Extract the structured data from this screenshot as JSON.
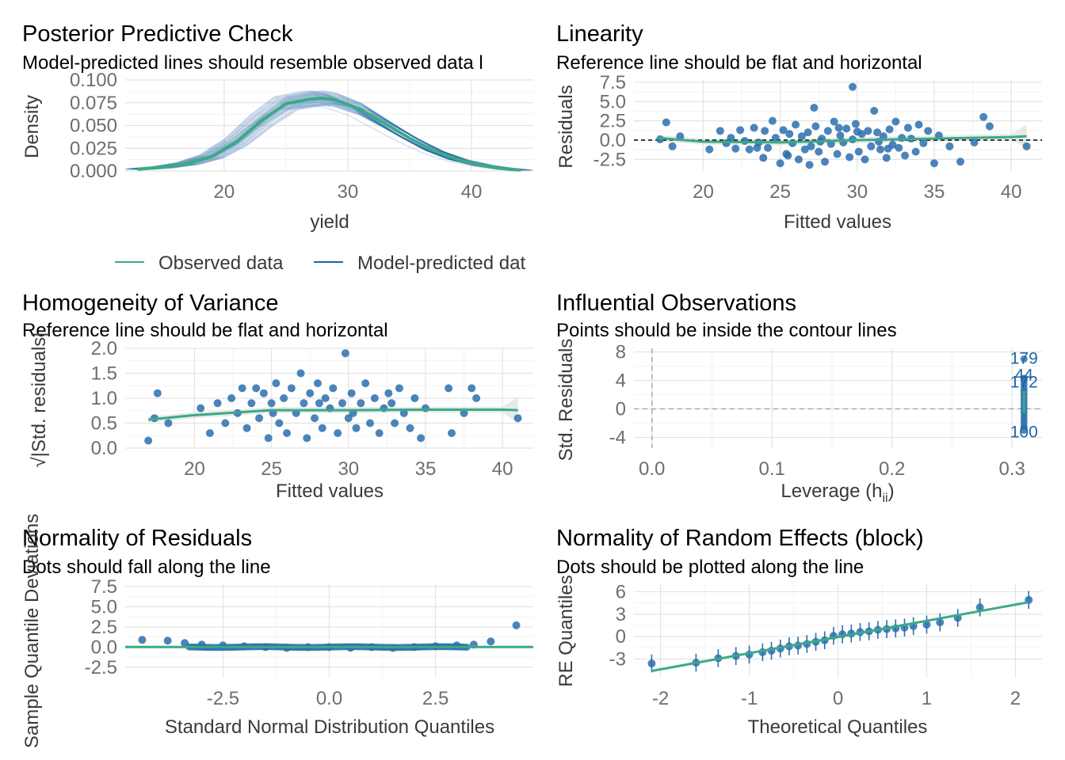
{
  "colors": {
    "observed": "#3aaa85",
    "predicted": "#1f65a6",
    "points": "#2c6fae",
    "ref": "#3aaa85",
    "band": "#dadada"
  },
  "chart_data": [
    {
      "id": "ppc",
      "type": "line",
      "title": "Posterior Predictive Check",
      "subtitle": "Model-predicted lines should resemble observed data l",
      "xlabel": "yield",
      "ylabel": "Density",
      "xlim": [
        12,
        45
      ],
      "ylim": [
        0,
        0.1
      ],
      "x_ticks": [
        20,
        30,
        40
      ],
      "x_tick_labels": [
        "20",
        "30",
        "40"
      ],
      "y_ticks": [
        0,
        0.025,
        0.05,
        0.075,
        0.1
      ],
      "y_tick_labels": [
        "0.000",
        "0.025",
        "0.050",
        "0.075",
        "0.100"
      ],
      "legend": [
        {
          "label": "Observed data",
          "color": "#3aaa85"
        },
        {
          "label": "Model-predicted dat",
          "color": "#1f65a6"
        }
      ],
      "series": [
        {
          "name": "Observed data",
          "x": [
            13,
            15,
            17,
            19,
            21,
            23,
            25,
            27,
            28,
            29,
            31,
            33,
            35,
            37,
            39,
            41,
            43,
            44
          ],
          "y": [
            0.002,
            0.004,
            0.008,
            0.016,
            0.032,
            0.055,
            0.074,
            0.079,
            0.08,
            0.078,
            0.068,
            0.052,
            0.036,
            0.022,
            0.012,
            0.006,
            0.002,
            0.001
          ]
        }
      ]
    },
    {
      "id": "linearity",
      "type": "scatter",
      "title": "Linearity",
      "subtitle": "Reference line should be flat and horizontal",
      "xlabel": "Fitted values",
      "ylabel": "Residuals",
      "xlim": [
        15.5,
        42
      ],
      "ylim": [
        -4,
        7.8
      ],
      "x_ticks": [
        20,
        25,
        30,
        35,
        40
      ],
      "x_tick_labels": [
        "20",
        "25",
        "30",
        "35",
        "40"
      ],
      "y_ticks": [
        -2.5,
        0,
        2.5,
        5,
        7.5
      ],
      "y_tick_labels": [
        "-2.5",
        "0.0",
        "2.5",
        "5.0",
        "7.5"
      ],
      "points": [
        [
          17.2,
          0.1
        ],
        [
          17.6,
          2.3
        ],
        [
          18,
          -0.8
        ],
        [
          18.5,
          0.5
        ],
        [
          20.4,
          -1.2
        ],
        [
          21.1,
          1.2
        ],
        [
          21.5,
          -0.4
        ],
        [
          21.8,
          0.3
        ],
        [
          22.1,
          -1.1
        ],
        [
          22.4,
          1.3
        ],
        [
          22.7,
          -0.1
        ],
        [
          23.0,
          -1.2
        ],
        [
          23.3,
          1.6
        ],
        [
          23.6,
          -0.3
        ],
        [
          23.9,
          -2.3
        ],
        [
          24.0,
          1.2
        ],
        [
          24.2,
          -1.0
        ],
        [
          24.5,
          2.5
        ],
        [
          24.7,
          0.3
        ],
        [
          25.0,
          -3.0
        ],
        [
          25.2,
          1.3
        ],
        [
          25.4,
          -1.8
        ],
        [
          25.6,
          0.8
        ],
        [
          25.8,
          -0.4
        ],
        [
          26.0,
          2.0
        ],
        [
          26.2,
          -2.5
        ],
        [
          26.4,
          0.5
        ],
        [
          26.6,
          -1.2
        ],
        [
          26.8,
          1.0
        ],
        [
          27.0,
          -0.8
        ],
        [
          27.2,
          4.2
        ],
        [
          27.3,
          1.8
        ],
        [
          27.5,
          -1.5
        ],
        [
          27.7,
          0.2
        ],
        [
          27.9,
          -2.8
        ],
        [
          28.1,
          1.2
        ],
        [
          28.3,
          -0.5
        ],
        [
          28.5,
          2.4
        ],
        [
          28.7,
          -1.8
        ],
        [
          28.9,
          0.6
        ],
        [
          29.1,
          -0.3
        ],
        [
          29.3,
          1.5
        ],
        [
          29.5,
          -2.2
        ],
        [
          29.7,
          0.1
        ],
        [
          29.9,
          2.1
        ],
        [
          30.1,
          -1.5
        ],
        [
          30.3,
          0.8
        ],
        [
          30.5,
          -2.5
        ],
        [
          30.7,
          1.2
        ],
        [
          30.9,
          -0.8
        ],
        [
          31.1,
          3.8
        ],
        [
          31.3,
          1.0
        ],
        [
          31.5,
          -1.2
        ],
        [
          31.7,
          0.5
        ],
        [
          31.9,
          -2.3
        ],
        [
          32.1,
          1.4
        ],
        [
          32.3,
          -0.6
        ],
        [
          32.5,
          2.4
        ],
        [
          32.7,
          -1.0
        ],
        [
          32.9,
          0.3
        ],
        [
          33.1,
          -2.0
        ],
        [
          33.3,
          1.6
        ],
        [
          33.5,
          0.2
        ],
        [
          33.8,
          -1.5
        ],
        [
          34.0,
          2.0
        ],
        [
          34.3,
          -0.4
        ],
        [
          34.6,
          1.2
        ],
        [
          35.0,
          -3.0
        ],
        [
          35.3,
          0.6
        ],
        [
          36.0,
          -0.8
        ],
        [
          36.7,
          -2.8
        ],
        [
          37.6,
          -0.3
        ],
        [
          38.2,
          3.0
        ],
        [
          38.6,
          1.8
        ],
        [
          41,
          -0.8
        ],
        [
          29.7,
          6.9
        ],
        [
          23.5,
          -1.0
        ],
        [
          25.5,
          -2.0
        ],
        [
          27.6,
          -0.2
        ],
        [
          30.0,
          1.1
        ],
        [
          32.0,
          -1.1
        ],
        [
          26.9,
          -3.2
        ],
        [
          28.8,
          1.6
        ],
        [
          31.4,
          -0.2
        ]
      ],
      "ref_line": {
        "x": [
          17,
          20,
          25,
          30,
          35,
          40,
          41
        ],
        "y": [
          0.3,
          -0.2,
          -0.3,
          0.0,
          0.2,
          0.4,
          0.5
        ]
      },
      "zero_line": true
    },
    {
      "id": "homogeneity",
      "type": "scatter",
      "title": "Homogeneity of Variance",
      "subtitle": "Reference line should be flat and horizontal",
      "xlabel": "Fitted values",
      "ylabel": "√|Std. residuals|",
      "xlim": [
        15.5,
        42
      ],
      "ylim": [
        0,
        2
      ],
      "x_ticks": [
        20,
        25,
        30,
        35,
        40
      ],
      "x_tick_labels": [
        "20",
        "25",
        "30",
        "35",
        "40"
      ],
      "y_ticks": [
        0,
        0.5,
        1,
        1.5,
        2
      ],
      "y_tick_labels": [
        "0.0",
        "0.5",
        "1.0",
        "1.5",
        "2.0"
      ],
      "points": [
        [
          17,
          0.15
        ],
        [
          17.4,
          0.6
        ],
        [
          17.6,
          1.1
        ],
        [
          18.3,
          0.5
        ],
        [
          20.4,
          0.8
        ],
        [
          21,
          0.3
        ],
        [
          21.5,
          0.9
        ],
        [
          22,
          0.5
        ],
        [
          22.4,
          1.0
        ],
        [
          22.8,
          0.7
        ],
        [
          23.1,
          1.2
        ],
        [
          23.4,
          0.4
        ],
        [
          23.7,
          0.9
        ],
        [
          24,
          1.2
        ],
        [
          24.2,
          0.6
        ],
        [
          24.5,
          1.1
        ],
        [
          24.8,
          0.2
        ],
        [
          25,
          0.9
        ],
        [
          25.3,
          1.3
        ],
        [
          25.5,
          0.5
        ],
        [
          25.8,
          1.0
        ],
        [
          26,
          0.3
        ],
        [
          26.3,
          1.2
        ],
        [
          26.6,
          0.7
        ],
        [
          26.9,
          1.5
        ],
        [
          27.1,
          0.9
        ],
        [
          27.3,
          0.2
        ],
        [
          27.5,
          1.1
        ],
        [
          27.8,
          0.6
        ],
        [
          28,
          1.3
        ],
        [
          28.3,
          0.4
        ],
        [
          28.5,
          1.0
        ],
        [
          28.8,
          0.8
        ],
        [
          29,
          1.2
        ],
        [
          29.3,
          0.3
        ],
        [
          29.6,
          0.9
        ],
        [
          29.8,
          1.9
        ],
        [
          30,
          0.6
        ],
        [
          30.2,
          1.1
        ],
        [
          30.5,
          0.4
        ],
        [
          30.8,
          0.9
        ],
        [
          31.1,
          1.3
        ],
        [
          31.4,
          0.5
        ],
        [
          31.7,
          1.0
        ],
        [
          32,
          0.3
        ],
        [
          32.3,
          0.8
        ],
        [
          32.6,
          1.1
        ],
        [
          33,
          0.5
        ],
        [
          33.3,
          1.2
        ],
        [
          33.6,
          0.7
        ],
        [
          34,
          0.4
        ],
        [
          34.3,
          1.0
        ],
        [
          34.7,
          0.2
        ],
        [
          35,
          0.8
        ],
        [
          36.5,
          1.2
        ],
        [
          36.7,
          0.3
        ],
        [
          37.5,
          0.7
        ],
        [
          38,
          1.2
        ],
        [
          38.3,
          1.0
        ],
        [
          41,
          0.6
        ],
        [
          25.1,
          0.7
        ],
        [
          28.1,
          0.9
        ],
        [
          30.3,
          0.7
        ],
        [
          32.8,
          0.9
        ]
      ],
      "ref_line": {
        "x": [
          17,
          20,
          25,
          30,
          35,
          40,
          41
        ],
        "y": [
          0.57,
          0.66,
          0.76,
          0.76,
          0.77,
          0.77,
          0.76
        ]
      }
    },
    {
      "id": "influence",
      "type": "scatter",
      "title": "Influential Observations",
      "subtitle": "Points should be inside the contour lines",
      "xlabel": "Leverage (h",
      "xlabel_sub": "ii",
      "xlabel_end": ")",
      "ylabel": "Std. Residuals",
      "xlim": [
        -0.015,
        0.325
      ],
      "ylim": [
        -5.5,
        8.5
      ],
      "x_ticks": [
        0,
        0.1,
        0.2,
        0.3
      ],
      "x_tick_labels": [
        "0.0",
        "0.1",
        "0.2",
        "0.3"
      ],
      "y_ticks": [
        -4,
        0,
        4,
        8
      ],
      "y_tick_labels": [
        "-4",
        "0",
        "4",
        "8"
      ],
      "point_labels": [
        {
          "label": "179",
          "x": 0.31,
          "y": 7.2
        },
        {
          "label": "44",
          "x": 0.31,
          "y": 4.9
        },
        {
          "label": "172",
          "x": 0.31,
          "y": 3.9
        },
        {
          "label": "100",
          "x": 0.31,
          "y": -3.1
        }
      ],
      "point_x": 0.31,
      "point_ys": [
        -3.0,
        -2.5,
        -2.0,
        -1.5,
        -1.0,
        -0.5,
        0,
        0.5,
        1.0,
        1.5,
        2.0,
        2.5,
        3.0,
        3.5,
        4.0,
        4.3,
        7.0
      ]
    },
    {
      "id": "normres",
      "type": "scatter",
      "title": "Normality of Residuals",
      "subtitle": "Dots should fall along the line",
      "xlabel": "Standard Normal Distribution Quantiles",
      "ylabel": "Sample Quantile Deviations",
      "xlim": [
        -4.8,
        4.8
      ],
      "ylim": [
        -3.8,
        7.8
      ],
      "x_ticks": [
        -2.5,
        0,
        2.5
      ],
      "x_tick_labels": [
        "-2.5",
        "0.0",
        "2.5"
      ],
      "y_ticks": [
        -2.5,
        0,
        2.5,
        5,
        7.5
      ],
      "y_tick_labels": [
        "-2.5",
        "0.0",
        "2.5",
        "5.0",
        "7.5"
      ],
      "points": [
        [
          -4.4,
          0.9
        ],
        [
          -3.8,
          0.8
        ],
        [
          -3.4,
          0.5
        ],
        [
          -3.0,
          0.3
        ],
        [
          -2.5,
          0.2
        ],
        [
          -2.0,
          0.1
        ],
        [
          -1.5,
          0.0
        ],
        [
          -1.0,
          -0.1
        ],
        [
          -0.5,
          0.0
        ],
        [
          0,
          0.0
        ],
        [
          0.5,
          -0.1
        ],
        [
          1.0,
          0.0
        ],
        [
          1.5,
          -0.1
        ],
        [
          2.0,
          0.0
        ],
        [
          2.5,
          0.1
        ],
        [
          3.0,
          0.2
        ],
        [
          3.4,
          0.3
        ],
        [
          3.8,
          0.7
        ],
        [
          4.4,
          2.7
        ]
      ],
      "ref_line": {
        "x": [
          -4.8,
          4.8
        ],
        "y": [
          0,
          0
        ]
      }
    },
    {
      "id": "normre",
      "type": "scatter",
      "title": "Normality of Random Effects (block)",
      "subtitle": "Dots should be plotted along the line",
      "xlabel": "Theoretical Quantiles",
      "ylabel": "RE Quantiles",
      "xlim": [
        -2.3,
        2.3
      ],
      "ylim": [
        -5.5,
        7
      ],
      "x_ticks": [
        -2,
        -1,
        0,
        1,
        2
      ],
      "x_tick_labels": [
        "-2",
        "-1",
        "0",
        "1",
        "2"
      ],
      "y_ticks": [
        -3,
        0,
        3,
        6
      ],
      "y_tick_labels": [
        "-3",
        "0",
        "3",
        "6"
      ],
      "points": [
        [
          -2.1,
          -3.6
        ],
        [
          -1.6,
          -3.5
        ],
        [
          -1.35,
          -2.9
        ],
        [
          -1.15,
          -2.6
        ],
        [
          -1.0,
          -2.4
        ],
        [
          -0.85,
          -2.1
        ],
        [
          -0.75,
          -1.9
        ],
        [
          -0.65,
          -1.6
        ],
        [
          -0.55,
          -1.3
        ],
        [
          -0.45,
          -1.2
        ],
        [
          -0.35,
          -1.0
        ],
        [
          -0.25,
          -0.7
        ],
        [
          -0.15,
          -0.5
        ],
        [
          -0.05,
          0.1
        ],
        [
          0.05,
          0.3
        ],
        [
          0.15,
          0.4
        ],
        [
          0.25,
          0.6
        ],
        [
          0.35,
          0.7
        ],
        [
          0.45,
          0.9
        ],
        [
          0.55,
          1.0
        ],
        [
          0.65,
          1.1
        ],
        [
          0.75,
          1.2
        ],
        [
          0.85,
          1.4
        ],
        [
          1.0,
          1.6
        ],
        [
          1.15,
          1.9
        ],
        [
          1.35,
          2.5
        ],
        [
          1.6,
          3.9
        ],
        [
          2.15,
          4.9
        ]
      ],
      "ref_line": {
        "x": [
          -2.1,
          2.15
        ],
        "y": [
          -4.6,
          4.6
        ]
      },
      "err": 1.2
    }
  ]
}
